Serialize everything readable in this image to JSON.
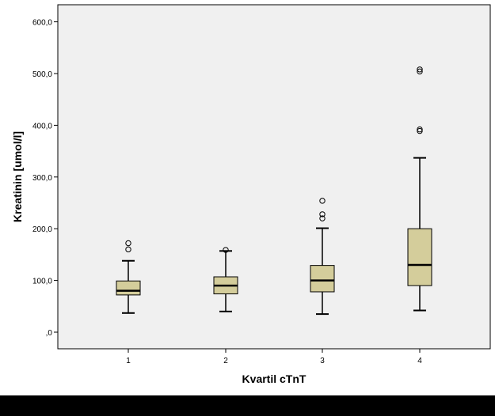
{
  "chart_data": {
    "type": "boxplot",
    "title": "",
    "xlabel": "Kvartil cTnT",
    "ylabel": "Kreatinin [umol/l]",
    "ylim": [
      0,
      600
    ],
    "y_ticks": [
      0,
      100,
      200,
      300,
      400,
      500,
      600
    ],
    "y_tick_labels": [
      ",0",
      "100,0",
      "200,0",
      "300,0",
      "400,0",
      "500,0",
      "600,0"
    ],
    "categories": [
      "1",
      "2",
      "3",
      "4"
    ],
    "box_fill": "#d4cd9b",
    "plot_background": "#f0f0f0",
    "grid": false,
    "boxes": [
      {
        "category": "1",
        "whisker_low": 37,
        "q1": 72,
        "median": 80,
        "q3": 99,
        "whisker_high": 138,
        "outliers": [
          160,
          172
        ]
      },
      {
        "category": "2",
        "whisker_low": 40,
        "q1": 74,
        "median": 90,
        "q3": 107,
        "whisker_high": 157,
        "outliers": [
          159
        ]
      },
      {
        "category": "3",
        "whisker_low": 35,
        "q1": 78,
        "median": 100,
        "q3": 129,
        "whisker_high": 201,
        "outliers": [
          220,
          228,
          254
        ]
      },
      {
        "category": "4",
        "whisker_low": 42,
        "q1": 90,
        "median": 130,
        "q3": 200,
        "whisker_high": 337,
        "outliers": [
          389,
          392,
          504,
          508
        ]
      }
    ]
  }
}
